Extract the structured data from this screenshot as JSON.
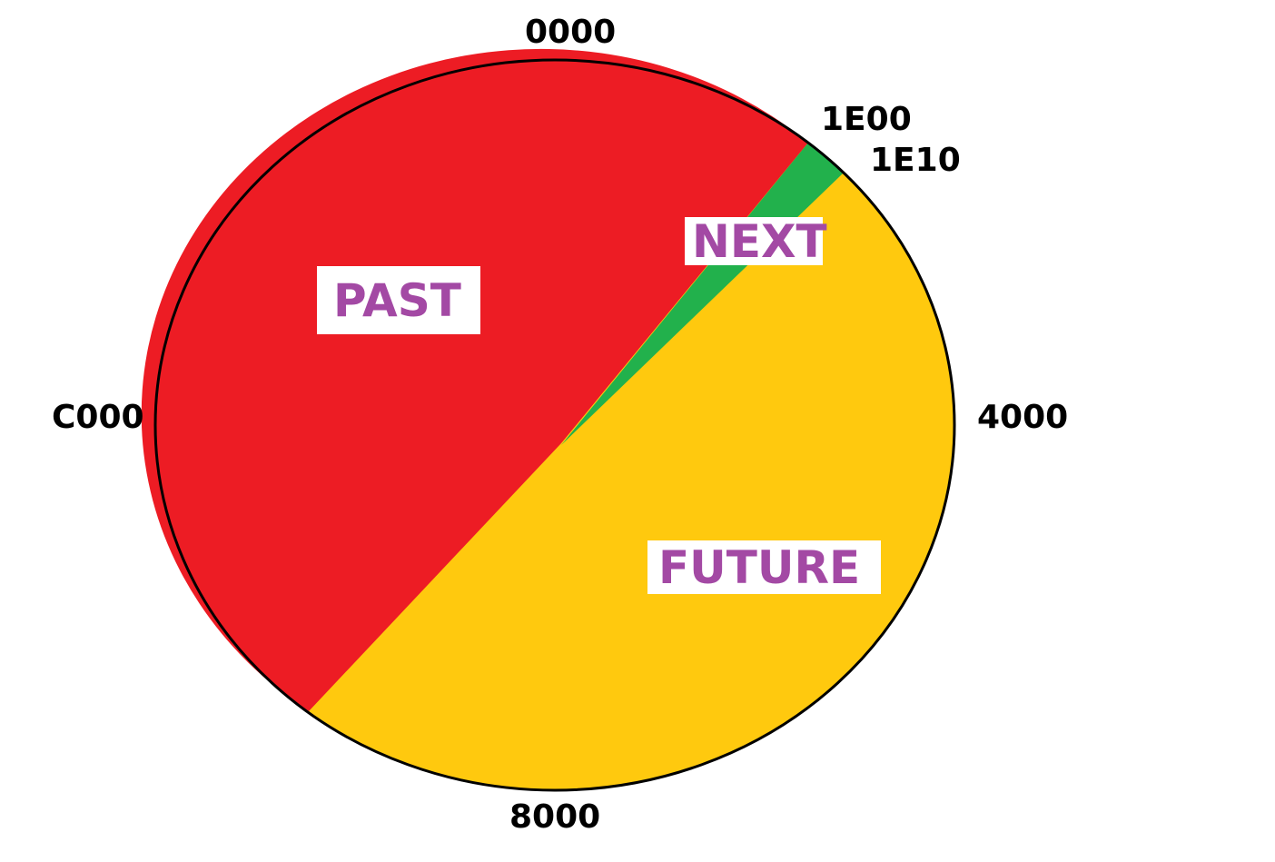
{
  "addresses": {
    "top": "0000",
    "next_start": "1E00",
    "next_end": "1E10",
    "right": "4000",
    "bottom": "8000",
    "left": "C000"
  },
  "regions": {
    "past": "PAST",
    "next": "NEXT",
    "future": "FUTURE"
  },
  "colors": {
    "past": "#ED1C24",
    "next": "#22B14C",
    "future": "#FFC90E",
    "label_text": "#A349A4",
    "outline": "#000000"
  }
}
